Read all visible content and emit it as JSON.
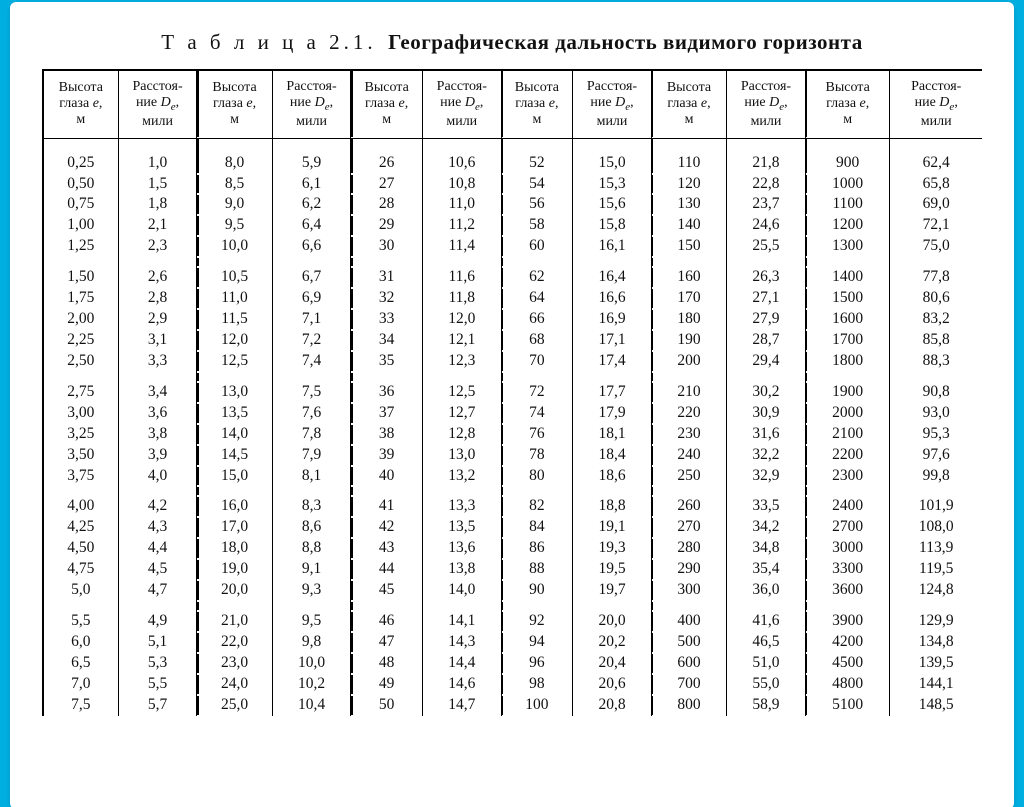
{
  "title_prefix": "Т а б л и ц а  2.1.",
  "title_main": "Географическая дальность видимого горизонта",
  "header": {
    "h_line1": "Высота",
    "h_line2": "глаза",
    "h_var": "e",
    "h_unit": "м",
    "d_line1": "Расстоя-",
    "d_line2": "ние",
    "d_var": "D",
    "d_sub": "e",
    "d_unit": "мили"
  },
  "pairs": [
    {
      "blocks": [
        [
          [
            "0,25",
            "1,0"
          ],
          [
            "0,50",
            "1,5"
          ],
          [
            "0,75",
            "1,8"
          ],
          [
            "1,00",
            "2,1"
          ],
          [
            "1,25",
            "2,3"
          ]
        ],
        [
          [
            "1,50",
            "2,6"
          ],
          [
            "1,75",
            "2,8"
          ],
          [
            "2,00",
            "2,9"
          ],
          [
            "2,25",
            "3,1"
          ],
          [
            "2,50",
            "3,3"
          ]
        ],
        [
          [
            "2,75",
            "3,4"
          ],
          [
            "3,00",
            "3,6"
          ],
          [
            "3,25",
            "3,8"
          ],
          [
            "3,50",
            "3,9"
          ],
          [
            "3,75",
            "4,0"
          ]
        ],
        [
          [
            "4,00",
            "4,2"
          ],
          [
            "4,25",
            "4,3"
          ],
          [
            "4,50",
            "4,4"
          ],
          [
            "4,75",
            "4,5"
          ],
          [
            "5,0",
            "4,7"
          ]
        ],
        [
          [
            "5,5",
            "4,9"
          ],
          [
            "6,0",
            "5,1"
          ],
          [
            "6,5",
            "5,3"
          ],
          [
            "7,0",
            "5,5"
          ],
          [
            "7,5",
            "5,7"
          ]
        ]
      ]
    },
    {
      "blocks": [
        [
          [
            "8,0",
            "5,9"
          ],
          [
            "8,5",
            "6,1"
          ],
          [
            "9,0",
            "6,2"
          ],
          [
            "9,5",
            "6,4"
          ],
          [
            "10,0",
            "6,6"
          ]
        ],
        [
          [
            "10,5",
            "6,7"
          ],
          [
            "11,0",
            "6,9"
          ],
          [
            "11,5",
            "7,1"
          ],
          [
            "12,0",
            "7,2"
          ],
          [
            "12,5",
            "7,4"
          ]
        ],
        [
          [
            "13,0",
            "7,5"
          ],
          [
            "13,5",
            "7,6"
          ],
          [
            "14,0",
            "7,8"
          ],
          [
            "14,5",
            "7,9"
          ],
          [
            "15,0",
            "8,1"
          ]
        ],
        [
          [
            "16,0",
            "8,3"
          ],
          [
            "17,0",
            "8,6"
          ],
          [
            "18,0",
            "8,8"
          ],
          [
            "19,0",
            "9,1"
          ],
          [
            "20,0",
            "9,3"
          ]
        ],
        [
          [
            "21,0",
            "9,5"
          ],
          [
            "22,0",
            "9,8"
          ],
          [
            "23,0",
            "10,0"
          ],
          [
            "24,0",
            "10,2"
          ],
          [
            "25,0",
            "10,4"
          ]
        ]
      ]
    },
    {
      "blocks": [
        [
          [
            "26",
            "10,6"
          ],
          [
            "27",
            "10,8"
          ],
          [
            "28",
            "11,0"
          ],
          [
            "29",
            "11,2"
          ],
          [
            "30",
            "11,4"
          ]
        ],
        [
          [
            "31",
            "11,6"
          ],
          [
            "32",
            "11,8"
          ],
          [
            "33",
            "12,0"
          ],
          [
            "34",
            "12,1"
          ],
          [
            "35",
            "12,3"
          ]
        ],
        [
          [
            "36",
            "12,5"
          ],
          [
            "37",
            "12,7"
          ],
          [
            "38",
            "12,8"
          ],
          [
            "39",
            "13,0"
          ],
          [
            "40",
            "13,2"
          ]
        ],
        [
          [
            "41",
            "13,3"
          ],
          [
            "42",
            "13,5"
          ],
          [
            "43",
            "13,6"
          ],
          [
            "44",
            "13,8"
          ],
          [
            "45",
            "14,0"
          ]
        ],
        [
          [
            "46",
            "14,1"
          ],
          [
            "47",
            "14,3"
          ],
          [
            "48",
            "14,4"
          ],
          [
            "49",
            "14,6"
          ],
          [
            "50",
            "14,7"
          ]
        ]
      ]
    },
    {
      "blocks": [
        [
          [
            "52",
            "15,0"
          ],
          [
            "54",
            "15,3"
          ],
          [
            "56",
            "15,6"
          ],
          [
            "58",
            "15,8"
          ],
          [
            "60",
            "16,1"
          ]
        ],
        [
          [
            "62",
            "16,4"
          ],
          [
            "64",
            "16,6"
          ],
          [
            "66",
            "16,9"
          ],
          [
            "68",
            "17,1"
          ],
          [
            "70",
            "17,4"
          ]
        ],
        [
          [
            "72",
            "17,7"
          ],
          [
            "74",
            "17,9"
          ],
          [
            "76",
            "18,1"
          ],
          [
            "78",
            "18,4"
          ],
          [
            "80",
            "18,6"
          ]
        ],
        [
          [
            "82",
            "18,8"
          ],
          [
            "84",
            "19,1"
          ],
          [
            "86",
            "19,3"
          ],
          [
            "88",
            "19,5"
          ],
          [
            "90",
            "19,7"
          ]
        ],
        [
          [
            "92",
            "20,0"
          ],
          [
            "94",
            "20,2"
          ],
          [
            "96",
            "20,4"
          ],
          [
            "98",
            "20,6"
          ],
          [
            "100",
            "20,8"
          ]
        ]
      ]
    },
    {
      "blocks": [
        [
          [
            "110",
            "21,8"
          ],
          [
            "120",
            "22,8"
          ],
          [
            "130",
            "23,7"
          ],
          [
            "140",
            "24,6"
          ],
          [
            "150",
            "25,5"
          ]
        ],
        [
          [
            "160",
            "26,3"
          ],
          [
            "170",
            "27,1"
          ],
          [
            "180",
            "27,9"
          ],
          [
            "190",
            "28,7"
          ],
          [
            "200",
            "29,4"
          ]
        ],
        [
          [
            "210",
            "30,2"
          ],
          [
            "220",
            "30,9"
          ],
          [
            "230",
            "31,6"
          ],
          [
            "240",
            "32,2"
          ],
          [
            "250",
            "32,9"
          ]
        ],
        [
          [
            "260",
            "33,5"
          ],
          [
            "270",
            "34,2"
          ],
          [
            "280",
            "34,8"
          ],
          [
            "290",
            "35,4"
          ],
          [
            "300",
            "36,0"
          ]
        ],
        [
          [
            "400",
            "41,6"
          ],
          [
            "500",
            "46,5"
          ],
          [
            "600",
            "51,0"
          ],
          [
            "700",
            "55,0"
          ],
          [
            "800",
            "58,9"
          ]
        ]
      ]
    },
    {
      "blocks": [
        [
          [
            "900",
            "62,4"
          ],
          [
            "1000",
            "65,8"
          ],
          [
            "1100",
            "69,0"
          ],
          [
            "1200",
            "72,1"
          ],
          [
            "1300",
            "75,0"
          ]
        ],
        [
          [
            "1400",
            "77,8"
          ],
          [
            "1500",
            "80,6"
          ],
          [
            "1600",
            "83,2"
          ],
          [
            "1700",
            "85,8"
          ],
          [
            "1800",
            "88,3"
          ]
        ],
        [
          [
            "1900",
            "90,8"
          ],
          [
            "2000",
            "93,0"
          ],
          [
            "2100",
            "95,3"
          ],
          [
            "2200",
            "97,6"
          ],
          [
            "2300",
            "99,8"
          ]
        ],
        [
          [
            "2400",
            "101,9"
          ],
          [
            "2700",
            "108,0"
          ],
          [
            "3000",
            "113,9"
          ],
          [
            "3300",
            "119,5"
          ],
          [
            "3600",
            "124,8"
          ]
        ],
        [
          [
            "3900",
            "129,9"
          ],
          [
            "4200",
            "134,8"
          ],
          [
            "4500",
            "139,5"
          ],
          [
            "4800",
            "144,1"
          ],
          [
            "5100",
            "148,5"
          ]
        ]
      ]
    }
  ]
}
